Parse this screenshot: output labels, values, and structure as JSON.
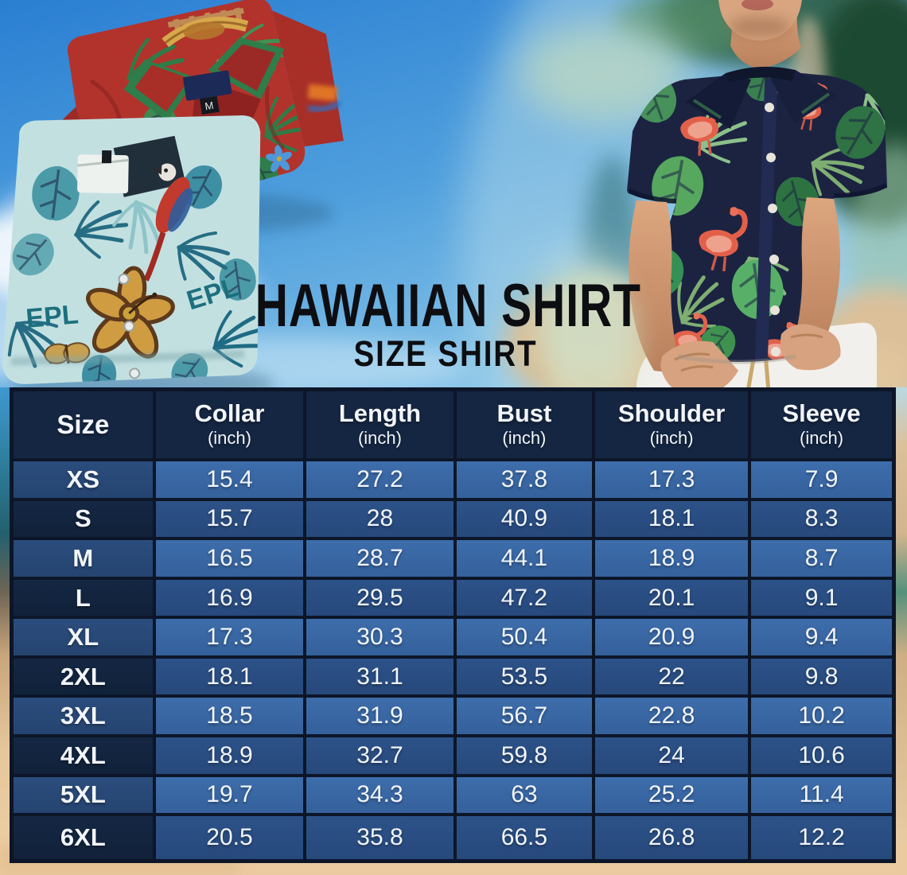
{
  "hero": {
    "title": "HAWAIIAN SHIRT",
    "subtitle": "SIZE SHIRT",
    "left_photo": {
      "shirts": [
        {
          "name": "red-tropical-print-shirt",
          "label_size": "M"
        },
        {
          "name": "teal-tropical-print-shirt",
          "pattern_text": "EPL"
        }
      ]
    },
    "right_photo": {
      "name": "man-wearing-navy-flamingo-hawaiian-shirt"
    }
  },
  "chart_data": {
    "type": "table",
    "title": "HAWAIIAN SHIRT",
    "subtitle": "SIZE SHIRT",
    "columns": [
      {
        "label": "Size",
        "unit": ""
      },
      {
        "label": "Collar",
        "unit": "(inch)"
      },
      {
        "label": "Length",
        "unit": "(inch)"
      },
      {
        "label": "Bust",
        "unit": "(inch)"
      },
      {
        "label": "Shoulder",
        "unit": "(inch)"
      },
      {
        "label": "Sleeve",
        "unit": "(inch)"
      }
    ],
    "rows": [
      {
        "size": "XS",
        "values": [
          15.4,
          27.2,
          37.8,
          17.3,
          7.9
        ]
      },
      {
        "size": "S",
        "values": [
          15.7,
          28,
          40.9,
          18.1,
          8.3
        ]
      },
      {
        "size": "M",
        "values": [
          16.5,
          28.7,
          44.1,
          18.9,
          8.7
        ]
      },
      {
        "size": "L",
        "values": [
          16.9,
          29.5,
          47.2,
          20.1,
          9.1
        ]
      },
      {
        "size": "XL",
        "values": [
          17.3,
          30.3,
          50.4,
          20.9,
          9.4
        ]
      },
      {
        "size": "2XL",
        "values": [
          18.1,
          31.1,
          53.5,
          22,
          9.8
        ]
      },
      {
        "size": "3XL",
        "values": [
          18.5,
          31.9,
          56.7,
          22.8,
          10.2
        ]
      },
      {
        "size": "4XL",
        "values": [
          18.9,
          32.7,
          59.8,
          24,
          10.6
        ]
      },
      {
        "size": "5XL",
        "values": [
          19.7,
          34.3,
          63,
          25.2,
          11.4
        ]
      },
      {
        "size": "6XL",
        "values": [
          20.5,
          35.8,
          66.5,
          26.8,
          12.2
        ]
      }
    ]
  },
  "colors": {
    "header_bg": "#152642",
    "row_light": "#3d6dab",
    "row_light_b": "#35619c",
    "row_dark": "#2c5288",
    "row_dark_b": "#27497c",
    "size_light": "#2b4d7d",
    "size_light_b": "#254470",
    "size_dark": "#142743",
    "size_dark_b": "#11213a",
    "grid_line": "#0c1628",
    "text_color": "#f2f5fa",
    "title_text": "#0d0e12",
    "shirt_red": "#b2332c",
    "shirt_teal": "#c3e0e1",
    "shirt_navy": "#1b2341",
    "flamingo": "#e2604a",
    "leaf_green": "#3f9150",
    "sand": "#ecca9f",
    "sky_blue": "#2b7fd2"
  }
}
